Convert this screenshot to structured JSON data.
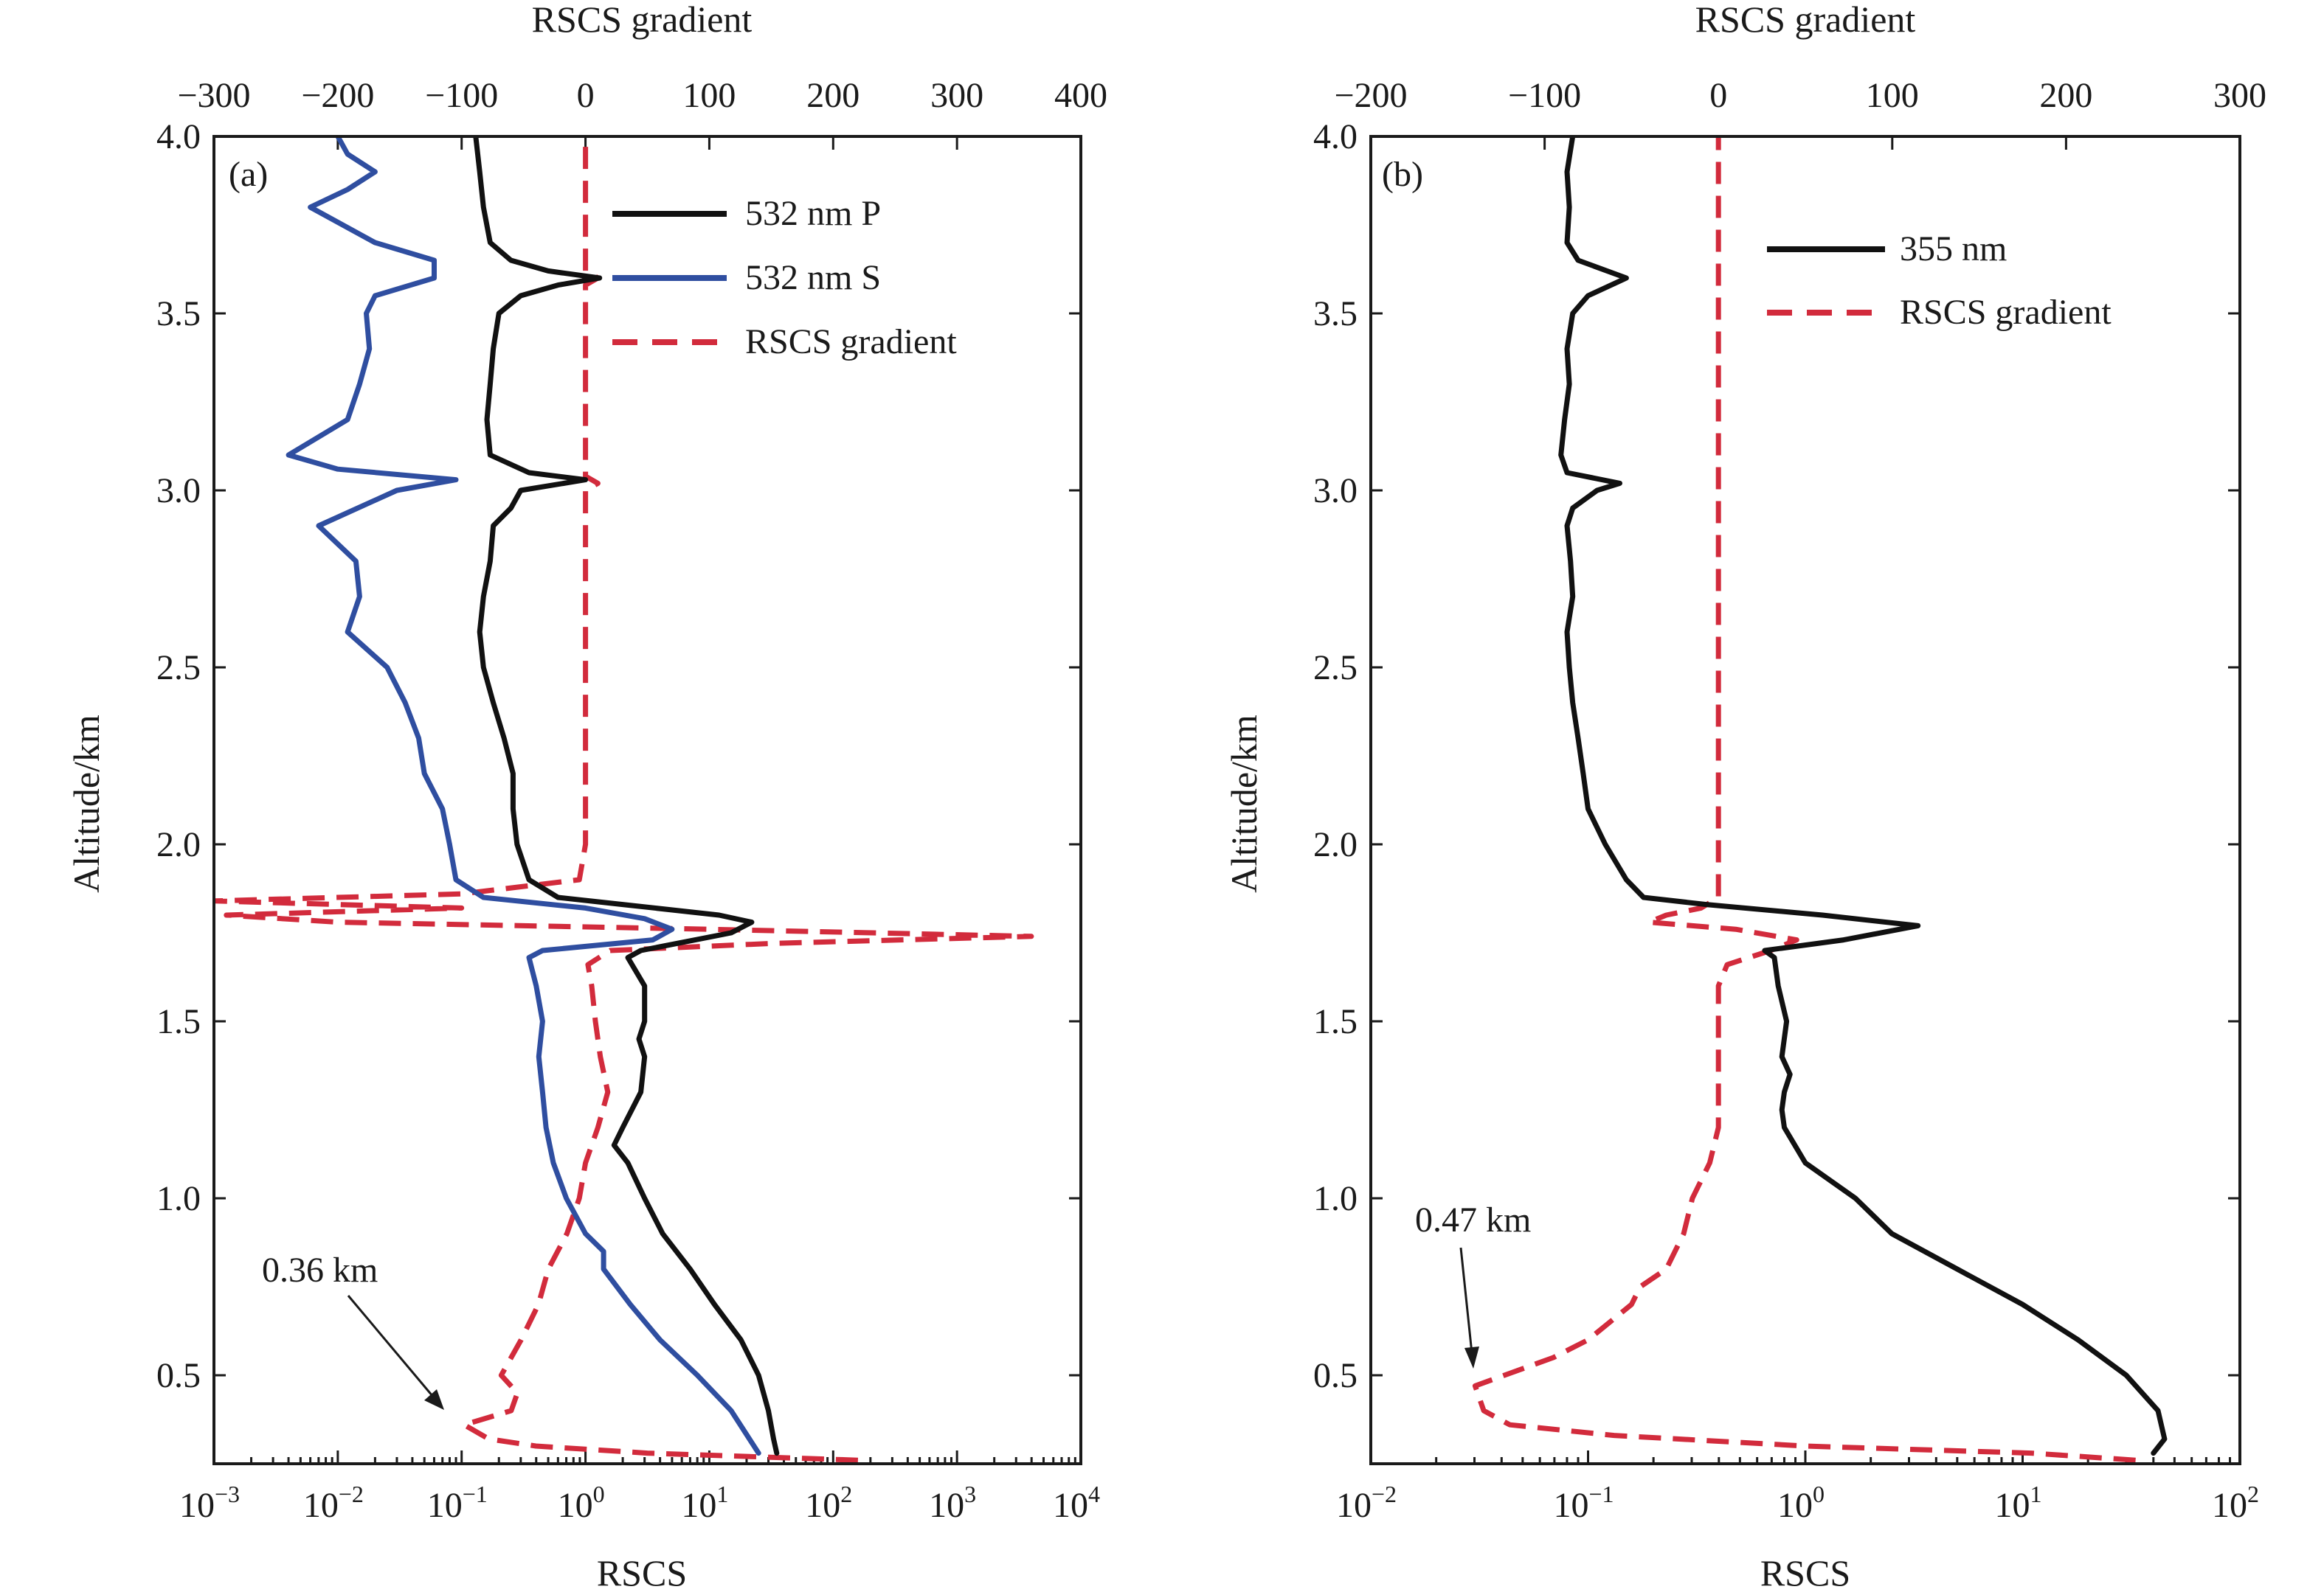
{
  "chart_data": [
    {
      "panel": "(a)",
      "type": "line",
      "ylabel": "Altitude/km",
      "xlabel_bottom": "RSCS",
      "xlabel_top": "RSCS gradient",
      "ylim": [
        0.25,
        4.0
      ],
      "yticks": [
        "0.5",
        "1.0",
        "1.5",
        "2.0",
        "2.5",
        "3.0",
        "3.5",
        "4.0"
      ],
      "yticks_values": [
        0.5,
        1.0,
        1.5,
        2.0,
        2.5,
        3.0,
        3.5,
        4.0
      ],
      "xlim_log_exp": [
        -3,
        4
      ],
      "xticks_bottom": [
        {
          "base": "10",
          "exp": "−3",
          "e": -3
        },
        {
          "base": "10",
          "exp": "−2",
          "e": -2
        },
        {
          "base": "10",
          "exp": "−1",
          "e": -1
        },
        {
          "base": "10",
          "exp": "0",
          "e": 0
        },
        {
          "base": "10",
          "exp": "1",
          "e": 1
        },
        {
          "base": "10",
          "exp": "2",
          "e": 2
        },
        {
          "base": "10",
          "exp": "3",
          "e": 3
        },
        {
          "base": "10",
          "exp": "4",
          "e": 4
        }
      ],
      "xlim_top": [
        -300,
        400
      ],
      "xticks_top": [
        "−300",
        "−200",
        "−100",
        "0",
        "100",
        "200",
        "300",
        "400"
      ],
      "xticks_top_values": [
        -300,
        -200,
        -100,
        0,
        100,
        200,
        300,
        400
      ],
      "legend": [
        "532 nm P",
        "532 nm S",
        "RSCS gradient"
      ],
      "annotation": {
        "text": "0.36 km",
        "altitude": 0.36
      },
      "series": [
        {
          "name": "532 nm P",
          "axis": "bottom",
          "color": "#111111",
          "style": "solid",
          "points": [
            [
              0.28,
              35
            ],
            [
              0.32,
              33
            ],
            [
              0.4,
              30
            ],
            [
              0.5,
              25
            ],
            [
              0.6,
              18
            ],
            [
              0.7,
              11
            ],
            [
              0.8,
              7
            ],
            [
              0.9,
              4.2
            ],
            [
              1.0,
              3.0
            ],
            [
              1.1,
              2.2
            ],
            [
              1.15,
              1.7
            ],
            [
              1.2,
              2.0
            ],
            [
              1.3,
              2.8
            ],
            [
              1.4,
              3.0
            ],
            [
              1.45,
              2.7
            ],
            [
              1.5,
              3.0
            ],
            [
              1.6,
              3.0
            ],
            [
              1.68,
              2.2
            ],
            [
              1.7,
              2.8
            ],
            [
              1.75,
              15
            ],
            [
              1.78,
              22
            ],
            [
              1.8,
              12
            ],
            [
              1.83,
              2.0
            ],
            [
              1.85,
              0.6
            ],
            [
              1.9,
              0.35
            ],
            [
              2.0,
              0.28
            ],
            [
              2.1,
              0.26
            ],
            [
              2.2,
              0.26
            ],
            [
              2.3,
              0.22
            ],
            [
              2.4,
              0.18
            ],
            [
              2.5,
              0.15
            ],
            [
              2.6,
              0.14
            ],
            [
              2.7,
              0.15
            ],
            [
              2.8,
              0.17
            ],
            [
              2.9,
              0.18
            ],
            [
              2.95,
              0.25
            ],
            [
              3.0,
              0.3
            ],
            [
              3.03,
              1.0
            ],
            [
              3.05,
              0.35
            ],
            [
              3.1,
              0.17
            ],
            [
              3.2,
              0.16
            ],
            [
              3.3,
              0.17
            ],
            [
              3.4,
              0.18
            ],
            [
              3.5,
              0.2
            ],
            [
              3.55,
              0.3
            ],
            [
              3.58,
              0.6
            ],
            [
              3.6,
              1.3
            ],
            [
              3.62,
              0.5
            ],
            [
              3.65,
              0.25
            ],
            [
              3.7,
              0.17
            ],
            [
              3.8,
              0.15
            ],
            [
              3.9,
              0.14
            ],
            [
              4.0,
              0.13
            ]
          ]
        },
        {
          "name": "532 nm S",
          "axis": "bottom",
          "color": "#2f4ea0",
          "style": "solid",
          "points": [
            [
              0.28,
              25
            ],
            [
              0.4,
              15
            ],
            [
              0.5,
              8
            ],
            [
              0.6,
              4
            ],
            [
              0.7,
              2.3
            ],
            [
              0.8,
              1.4
            ],
            [
              0.85,
              1.4
            ],
            [
              0.9,
              1.0
            ],
            [
              1.0,
              0.7
            ],
            [
              1.1,
              0.55
            ],
            [
              1.2,
              0.48
            ],
            [
              1.3,
              0.45
            ],
            [
              1.4,
              0.42
            ],
            [
              1.5,
              0.45
            ],
            [
              1.6,
              0.4
            ],
            [
              1.68,
              0.35
            ],
            [
              1.7,
              0.45
            ],
            [
              1.73,
              3.5
            ],
            [
              1.76,
              5
            ],
            [
              1.79,
              3
            ],
            [
              1.82,
              1.0
            ],
            [
              1.85,
              0.15
            ],
            [
              1.9,
              0.09
            ],
            [
              2.0,
              0.08
            ],
            [
              2.1,
              0.07
            ],
            [
              2.2,
              0.05
            ],
            [
              2.3,
              0.045
            ],
            [
              2.4,
              0.035
            ],
            [
              2.5,
              0.025
            ],
            [
              2.6,
              0.012
            ],
            [
              2.7,
              0.015
            ],
            [
              2.8,
              0.014
            ],
            [
              2.9,
              0.007
            ],
            [
              3.0,
              0.03
            ],
            [
              3.03,
              0.09
            ],
            [
              3.06,
              0.01
            ],
            [
              3.1,
              0.004
            ],
            [
              3.2,
              0.012
            ],
            [
              3.3,
              0.015
            ],
            [
              3.4,
              0.018
            ],
            [
              3.5,
              0.017
            ],
            [
              3.55,
              0.02
            ],
            [
              3.6,
              0.06
            ],
            [
              3.65,
              0.06
            ],
            [
              3.7,
              0.02
            ],
            [
              3.8,
              0.006
            ],
            [
              3.85,
              0.012
            ],
            [
              3.9,
              0.02
            ],
            [
              3.95,
              0.012
            ],
            [
              4.0,
              0.01
            ]
          ]
        },
        {
          "name": "RSCS gradient",
          "axis": "top",
          "color": "#d22b3c",
          "style": "dashed",
          "points": [
            [
              0.26,
              220
            ],
            [
              0.28,
              50
            ],
            [
              0.3,
              -40
            ],
            [
              0.32,
              -78
            ],
            [
              0.36,
              -98
            ],
            [
              0.4,
              -60
            ],
            [
              0.45,
              -55
            ],
            [
              0.5,
              -68
            ],
            [
              0.6,
              -52
            ],
            [
              0.7,
              -38
            ],
            [
              0.8,
              -30
            ],
            [
              0.9,
              -15
            ],
            [
              1.0,
              -5
            ],
            [
              1.1,
              0
            ],
            [
              1.2,
              10
            ],
            [
              1.3,
              18
            ],
            [
              1.4,
              12
            ],
            [
              1.5,
              8
            ],
            [
              1.6,
              5
            ],
            [
              1.66,
              2
            ],
            [
              1.7,
              20
            ],
            [
              1.72,
              150
            ],
            [
              1.74,
              360
            ],
            [
              1.76,
              100
            ],
            [
              1.78,
              -200
            ],
            [
              1.8,
              -290
            ],
            [
              1.82,
              -100
            ],
            [
              1.84,
              -300
            ],
            [
              1.86,
              -100
            ],
            [
              1.9,
              -5
            ],
            [
              2.0,
              0
            ],
            [
              3.0,
              0
            ],
            [
              3.02,
              10
            ],
            [
              3.04,
              0
            ],
            [
              3.58,
              0
            ],
            [
              3.6,
              10
            ],
            [
              3.62,
              0
            ],
            [
              4.0,
              0
            ]
          ]
        }
      ]
    },
    {
      "panel": "(b)",
      "type": "line",
      "ylabel": "Altitude/km",
      "xlabel_bottom": "RSCS",
      "xlabel_top": "RSCS gradient",
      "ylim": [
        0.25,
        4.0
      ],
      "yticks": [
        "0.5",
        "1.0",
        "1.5",
        "2.0",
        "2.5",
        "3.0",
        "3.5",
        "4.0"
      ],
      "yticks_values": [
        0.5,
        1.0,
        1.5,
        2.0,
        2.5,
        3.0,
        3.5,
        4.0
      ],
      "xlim_log_exp": [
        -2,
        2
      ],
      "xticks_bottom": [
        {
          "base": "10",
          "exp": "−2",
          "e": -2
        },
        {
          "base": "10",
          "exp": "−1",
          "e": -1
        },
        {
          "base": "10",
          "exp": "0",
          "e": 0
        },
        {
          "base": "10",
          "exp": "1",
          "e": 1
        },
        {
          "base": "10",
          "exp": "2",
          "e": 2
        }
      ],
      "xlim_top": [
        -200,
        300
      ],
      "xticks_top": [
        "−200",
        "−100",
        "0",
        "100",
        "200",
        "300"
      ],
      "xticks_top_values": [
        -200,
        -100,
        0,
        100,
        200,
        300
      ],
      "legend": [
        "355 nm",
        "RSCS gradient"
      ],
      "annotation": {
        "text": "0.47 km",
        "altitude": 0.47
      },
      "series": [
        {
          "name": "355 nm",
          "axis": "bottom",
          "color": "#111111",
          "style": "solid",
          "points": [
            [
              0.28,
              40
            ],
            [
              0.32,
              45
            ],
            [
              0.4,
              42
            ],
            [
              0.5,
              30
            ],
            [
              0.6,
              18
            ],
            [
              0.7,
              10
            ],
            [
              0.8,
              5
            ],
            [
              0.9,
              2.5
            ],
            [
              1.0,
              1.7
            ],
            [
              1.1,
              1.0
            ],
            [
              1.2,
              0.8
            ],
            [
              1.25,
              0.78
            ],
            [
              1.3,
              0.8
            ],
            [
              1.35,
              0.85
            ],
            [
              1.4,
              0.78
            ],
            [
              1.5,
              0.82
            ],
            [
              1.6,
              0.75
            ],
            [
              1.68,
              0.72
            ],
            [
              1.7,
              0.65
            ],
            [
              1.73,
              1.5
            ],
            [
              1.77,
              3.3
            ],
            [
              1.8,
              1.2
            ],
            [
              1.83,
              0.35
            ],
            [
              1.85,
              0.18
            ],
            [
              1.9,
              0.15
            ],
            [
              2.0,
              0.12
            ],
            [
              2.1,
              0.1
            ],
            [
              2.2,
              0.095
            ],
            [
              2.3,
              0.09
            ],
            [
              2.4,
              0.085
            ],
            [
              2.5,
              0.082
            ],
            [
              2.6,
              0.08
            ],
            [
              2.7,
              0.085
            ],
            [
              2.8,
              0.083
            ],
            [
              2.9,
              0.08
            ],
            [
              2.95,
              0.085
            ],
            [
              3.0,
              0.11
            ],
            [
              3.02,
              0.14
            ],
            [
              3.05,
              0.08
            ],
            [
              3.1,
              0.075
            ],
            [
              3.2,
              0.078
            ],
            [
              3.3,
              0.082
            ],
            [
              3.4,
              0.08
            ],
            [
              3.5,
              0.085
            ],
            [
              3.55,
              0.1
            ],
            [
              3.6,
              0.15
            ],
            [
              3.65,
              0.09
            ],
            [
              3.7,
              0.08
            ],
            [
              3.8,
              0.082
            ],
            [
              3.9,
              0.08
            ],
            [
              4.0,
              0.085
            ]
          ]
        },
        {
          "name": "RSCS gradient",
          "axis": "top",
          "color": "#d22b3c",
          "style": "dashed",
          "points": [
            [
              0.26,
              240
            ],
            [
              0.28,
              180
            ],
            [
              0.3,
              50
            ],
            [
              0.33,
              -60
            ],
            [
              0.36,
              -120
            ],
            [
              0.4,
              -135
            ],
            [
              0.47,
              -140
            ],
            [
              0.55,
              -95
            ],
            [
              0.6,
              -75
            ],
            [
              0.7,
              -50
            ],
            [
              0.75,
              -45
            ],
            [
              0.8,
              -30
            ],
            [
              0.9,
              -20
            ],
            [
              1.0,
              -15
            ],
            [
              1.1,
              -5
            ],
            [
              1.2,
              0
            ],
            [
              1.4,
              0
            ],
            [
              1.6,
              0
            ],
            [
              1.66,
              5
            ],
            [
              1.7,
              30
            ],
            [
              1.73,
              45
            ],
            [
              1.76,
              10
            ],
            [
              1.78,
              -40
            ],
            [
              1.8,
              -30
            ],
            [
              1.82,
              -10
            ],
            [
              1.85,
              0
            ],
            [
              4.0,
              0
            ]
          ]
        }
      ]
    }
  ]
}
